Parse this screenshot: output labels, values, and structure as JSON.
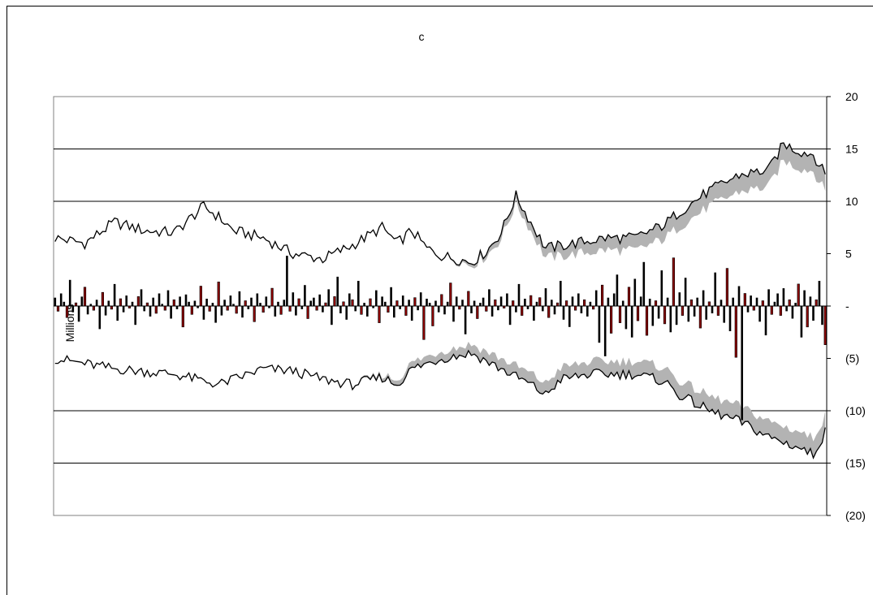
{
  "chart_data": {
    "type": "bar",
    "title": "c",
    "ylabel": "Millions",
    "xlabel": "",
    "ylim": [
      -20,
      20
    ],
    "yticks": [
      20,
      15,
      10,
      5,
      0,
      -5,
      -10,
      -15,
      -20
    ],
    "ytick_labels": [
      "20",
      "15",
      "10",
      "5",
      "-",
      "(5)",
      "(10)",
      "(15)",
      "(20)"
    ],
    "axis_side": "right",
    "grid": "major horizontal",
    "colors": {
      "positive_bar": "#000000",
      "negative_bar": "#8b0000",
      "band": "#b3b3b3",
      "line": "#000000"
    },
    "n_points": 260,
    "upper_line_anchors": [
      [
        0,
        6.5
      ],
      [
        10,
        6.0
      ],
      [
        20,
        8.0
      ],
      [
        30,
        7.2
      ],
      [
        40,
        7.0
      ],
      [
        50,
        9.5
      ],
      [
        55,
        8.5
      ],
      [
        60,
        7.2
      ],
      [
        70,
        6.5
      ],
      [
        80,
        5.0
      ],
      [
        90,
        4.5
      ],
      [
        100,
        5.8
      ],
      [
        110,
        7.5
      ],
      [
        115,
        6.0
      ],
      [
        120,
        7.2
      ],
      [
        125,
        5.5
      ],
      [
        130,
        4.8
      ],
      [
        140,
        4.2
      ],
      [
        145,
        5.2
      ],
      [
        150,
        7.0
      ],
      [
        155,
        10.5
      ],
      [
        160,
        8.0
      ],
      [
        165,
        5.5
      ],
      [
        175,
        6.0
      ],
      [
        185,
        6.5
      ],
      [
        195,
        6.5
      ],
      [
        205,
        7.8
      ],
      [
        210,
        9.0
      ],
      [
        215,
        10.0
      ],
      [
        220,
        11.0
      ],
      [
        230,
        12.5
      ],
      [
        240,
        13.0
      ],
      [
        245,
        15.5
      ],
      [
        250,
        14.8
      ],
      [
        255,
        14.5
      ],
      [
        259,
        12.5
      ]
    ],
    "upper_band_width": [
      [
        0,
        0.0
      ],
      [
        130,
        0.0
      ],
      [
        150,
        0.6
      ],
      [
        170,
        1.0
      ],
      [
        200,
        1.3
      ],
      [
        230,
        1.6
      ],
      [
        259,
        1.6
      ]
    ],
    "lower_line_anchors": [
      [
        0,
        -5.0
      ],
      [
        20,
        -6.0
      ],
      [
        40,
        -6.5
      ],
      [
        55,
        -7.5
      ],
      [
        70,
        -6.0
      ],
      [
        80,
        -6.2
      ],
      [
        90,
        -7.0
      ],
      [
        100,
        -7.5
      ],
      [
        110,
        -6.8
      ],
      [
        115,
        -7.5
      ],
      [
        120,
        -6.0
      ],
      [
        130,
        -5.0
      ],
      [
        140,
        -4.5
      ],
      [
        150,
        -6.0
      ],
      [
        160,
        -7.5
      ],
      [
        165,
        -8.5
      ],
      [
        170,
        -7.0
      ],
      [
        180,
        -6.5
      ],
      [
        195,
        -6.5
      ],
      [
        205,
        -7.2
      ],
      [
        210,
        -8.5
      ],
      [
        220,
        -10.0
      ],
      [
        230,
        -11.0
      ],
      [
        240,
        -12.5
      ],
      [
        250,
        -13.5
      ],
      [
        255,
        -14.2
      ],
      [
        259,
        -12.0
      ]
    ],
    "lower_band_width": [
      [
        0,
        0.0
      ],
      [
        100,
        0.0
      ],
      [
        120,
        0.6
      ],
      [
        150,
        1.0
      ],
      [
        200,
        1.3
      ],
      [
        259,
        1.6
      ]
    ],
    "bar_values": [
      0.8,
      -0.5,
      1.2,
      0.4,
      -1.1,
      2.5,
      -0.6,
      0.3,
      -1.5,
      0.9,
      1.8,
      -0.8,
      0.2,
      -0.4,
      0.6,
      -2.2,
      1.3,
      -0.9,
      0.5,
      -0.3,
      2.1,
      -1.4,
      0.7,
      -0.6,
      1.0,
      -0.2,
      0.4,
      -1.8,
      0.9,
      1.6,
      -0.5,
      0.3,
      -1.0,
      0.8,
      -0.7,
      1.2,
      0.2,
      -0.4,
      1.5,
      -1.2,
      0.6,
      -0.3,
      0.9,
      -2.0,
      1.1,
      0.4,
      -0.8,
      0.5,
      -0.2,
      1.9,
      -1.3,
      0.7,
      -0.5,
      0.3,
      -1.6,
      2.3,
      -0.9,
      0.6,
      -0.4,
      1.0,
      0.2,
      -0.7,
      1.4,
      -1.1,
      0.5,
      -0.3,
      0.8,
      -1.5,
      1.2,
      0.3,
      -0.6,
      0.9,
      -0.2,
      1.7,
      -1.0,
      0.4,
      -0.8,
      0.6,
      4.8,
      -0.5,
      1.3,
      -0.9,
      0.7,
      -0.3,
      2.0,
      -1.2,
      0.5,
      0.8,
      -0.4,
      1.1,
      -0.6,
      0.3,
      1.6,
      -1.8,
      0.9,
      2.8,
      -0.7,
      0.4,
      -1.3,
      1.2,
      0.6,
      -0.5,
      2.4,
      -0.8,
      0.3,
      -1.0,
      0.7,
      -0.2,
      1.5,
      -1.6,
      0.9,
      0.4,
      -0.6,
      1.8,
      -1.1,
      0.5,
      -0.3,
      1.0,
      -0.9,
      0.6,
      -1.4,
      0.8,
      -0.4,
      1.3,
      -3.2,
      0.7,
      0.3,
      -1.9,
      0.5,
      -0.6,
      1.1,
      -0.8,
      0.4,
      2.2,
      -1.5,
      0.9,
      -0.3,
      0.6,
      -2.7,
      1.4,
      -0.7,
      0.5,
      -1.2,
      0.3,
      0.8,
      -0.5,
      1.6,
      -1.0,
      0.6,
      -0.4,
      0.9,
      -0.2,
      1.2,
      -1.8,
      0.5,
      -0.6,
      2.1,
      -0.9,
      0.7,
      -0.3,
      1.0,
      -1.4,
      0.4,
      0.8,
      -0.5,
      1.7,
      -1.1,
      0.6,
      -0.8,
      0.3,
      2.4,
      -1.3,
      0.5,
      -2.0,
      0.9,
      -0.4,
      1.2,
      -0.7,
      0.6,
      -1.0,
      0.4,
      -0.3,
      1.5,
      -3.5,
      2.0,
      -4.8,
      0.8,
      -2.6,
      1.2,
      3.0,
      -1.6,
      0.5,
      -2.2,
      1.8,
      -3.0,
      2.6,
      -1.4,
      0.9,
      4.2,
      -2.8,
      0.7,
      -1.9,
      0.5,
      -1.2,
      3.4,
      -1.7,
      0.8,
      -2.5,
      4.6,
      -1.8,
      1.3,
      -0.9,
      2.7,
      -1.5,
      0.6,
      -1.0,
      0.8,
      -2.1,
      1.5,
      -1.3,
      0.4,
      -0.7,
      3.2,
      -0.9,
      0.6,
      -1.6,
      3.6,
      -2.4,
      0.8,
      -4.9,
      1.9,
      -10.9,
      1.2,
      -0.6,
      1.0,
      -0.4,
      0.8,
      -1.5,
      0.5,
      -2.8,
      1.6,
      -0.8,
      0.4,
      1.2,
      -0.9,
      1.7,
      -0.5,
      0.6,
      -1.2,
      0.3,
      2.1,
      -3.0,
      1.5,
      -2.0,
      0.9,
      -1.4,
      0.6,
      2.4,
      -1.8,
      -3.7
    ]
  }
}
